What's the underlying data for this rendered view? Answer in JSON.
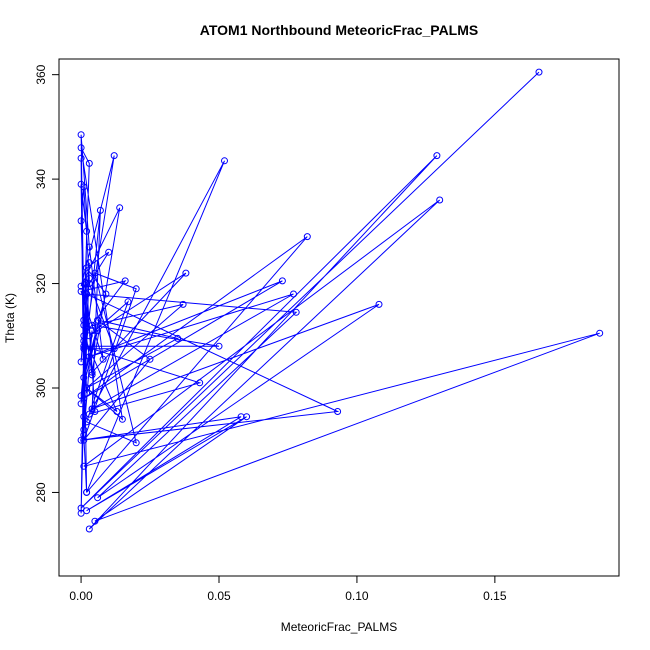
{
  "chart_data": {
    "type": "line",
    "title": "ATOM1 Northbound MeteoricFrac_PALMS",
    "xlabel": "MeteoricFrac_PALMS",
    "ylabel": "Theta (K)",
    "xlim": [
      -0.008,
      0.195
    ],
    "ylim": [
      264,
      363
    ],
    "x_ticks": [
      "0.00",
      "0.05",
      "0.10",
      "0.15"
    ],
    "y_ticks": [
      "280",
      "300",
      "320",
      "340",
      "360"
    ],
    "grid": false,
    "legend": "none",
    "marker": "open-circle",
    "color": "#0000ff",
    "series": [
      {
        "x": [
          0.166,
          0.0,
          0.129,
          0.003,
          0.13,
          0.001,
          0.188,
          0.005,
          0.06,
          0.002,
          0.058,
          0.0,
          0.093,
          0.002,
          0.078,
          0.006,
          0.108,
          0.004,
          0.077,
          0.003,
          0.073,
          0.001,
          0.082,
          0.002,
          0.052,
          0.003,
          0.043,
          0.001,
          0.05,
          0.004,
          0.037,
          0.002,
          0.035,
          0.006,
          0.025,
          0.001,
          0.02,
          0.005,
          0.02,
          0.002,
          0.017,
          0.003,
          0.038,
          0.004,
          0.014,
          0.0,
          0.012,
          0.001,
          0.012,
          0.003,
          0.01,
          0.002,
          0.009,
          0.001,
          0.006,
          0.0,
          0.007,
          0.004,
          0.005,
          0.002,
          0.004,
          0.001,
          0.003,
          0.0,
          0.015,
          0.002,
          0.013,
          0.001,
          0.016,
          0.0,
          0.008,
          0.003,
          0.0,
          0.002,
          0.001,
          0.004,
          0.0,
          0.003,
          0.001,
          0.0,
          0.002,
          0.001,
          0.0,
          0.003,
          0.001,
          0.002,
          0.0,
          0.001,
          0.0,
          0.002,
          0.001,
          0.0
        ],
        "y": [
          360.5,
          277.0,
          344.5,
          273.0,
          336.0,
          285.0,
          310.5,
          274.5,
          294.5,
          276.5,
          294.5,
          290.0,
          295.5,
          318.0,
          314.5,
          279.0,
          316.0,
          296.0,
          318.0,
          306.0,
          320.5,
          298.0,
          329.0,
          280.0,
          343.5,
          295.0,
          301.0,
          308.0,
          308.0,
          312.0,
          316.0,
          300.0,
          309.5,
          313.0,
          305.5,
          290.0,
          319.0,
          322.0,
          289.5,
          293.5,
          316.5,
          310.0,
          322.0,
          303.0,
          334.5,
          319.5,
          344.5,
          307.5,
          307.5,
          320.0,
          326.0,
          323.0,
          318.0,
          302.0,
          311.0,
          298.5,
          334.0,
          296.0,
          295.5,
          320.0,
          302.5,
          313.0,
          343.0,
          346.0,
          294.0,
          300.0,
          295.5,
          310.0,
          320.5,
          318.5,
          305.5,
          327.0,
          348.5,
          280.0,
          291.0,
          311.0,
          297.0,
          321.0,
          338.5,
          332.0,
          299.0,
          312.0,
          305.0,
          324.0,
          292.0,
          318.0,
          276.0,
          309.0,
          339.0,
          330.0,
          294.5,
          344.0
        ]
      }
    ]
  }
}
